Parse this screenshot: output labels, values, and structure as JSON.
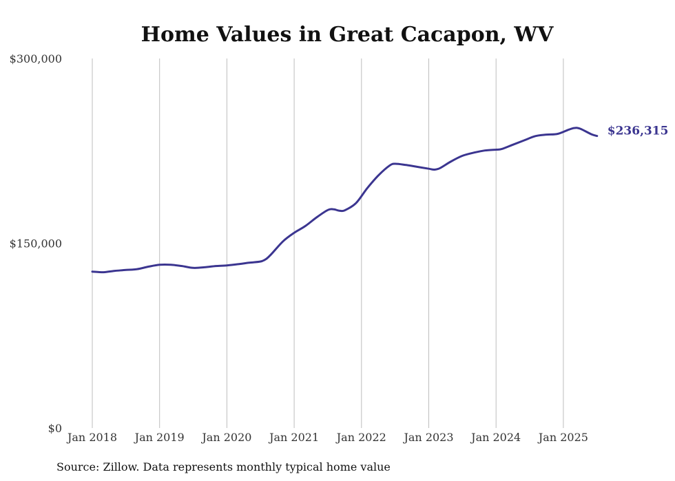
{
  "chart_data": {
    "type": "line",
    "title": "Home Values in Great Cacapon, WV",
    "source": "Source: Zillow. Data represents monthly typical home value",
    "ylim": [
      0,
      300000
    ],
    "y_ticks": [
      {
        "value": 0,
        "label": "$0"
      },
      {
        "value": 150000,
        "label": "$150,000"
      },
      {
        "value": 300000,
        "label": "$300,000"
      }
    ],
    "x_ticks": [
      {
        "value": "2018-01",
        "label": "Jan 2018"
      },
      {
        "value": "2019-01",
        "label": "Jan 2019"
      },
      {
        "value": "2020-01",
        "label": "Jan 2020"
      },
      {
        "value": "2021-01",
        "label": "Jan 2021"
      },
      {
        "value": "2022-01",
        "label": "Jan 2022"
      },
      {
        "value": "2023-01",
        "label": "Jan 2023"
      },
      {
        "value": "2024-01",
        "label": "Jan 2024"
      },
      {
        "value": "2025-01",
        "label": "Jan 2025"
      }
    ],
    "grid": {
      "vertical": true,
      "horizontal": false
    },
    "line_color": "#3b3590",
    "end_label": "$236,315",
    "series": [
      {
        "x": [
          "2018-01",
          "2018-03",
          "2018-05",
          "2018-07",
          "2018-09",
          "2018-11",
          "2019-01",
          "2019-03",
          "2019-05",
          "2019-07",
          "2019-09",
          "2019-11",
          "2020-01",
          "2020-03",
          "2020-05",
          "2020-07",
          "2020-08",
          "2020-09",
          "2020-11",
          "2021-01",
          "2021-03",
          "2021-05",
          "2021-07",
          "2021-08",
          "2021-09",
          "2021-10",
          "2021-12",
          "2022-02",
          "2022-04",
          "2022-06",
          "2022-07",
          "2022-09",
          "2022-11",
          "2023-01",
          "2023-02",
          "2023-03",
          "2023-05",
          "2023-07",
          "2023-09",
          "2023-11",
          "2024-01",
          "2024-02",
          "2024-04",
          "2024-06",
          "2024-08",
          "2024-10",
          "2024-12",
          "2025-02",
          "2025-03",
          "2025-04",
          "2025-06",
          "2025-07"
        ],
        "values": [
          127000,
          126500,
          127600,
          128300,
          129000,
          131000,
          132500,
          132500,
          131500,
          130000,
          130500,
          131500,
          132000,
          133000,
          134200,
          135200,
          137200,
          141500,
          151500,
          158500,
          164000,
          171000,
          177000,
          177600,
          176500,
          176700,
          182500,
          194500,
          205000,
          213000,
          214500,
          213500,
          212000,
          210500,
          209800,
          211000,
          216500,
          221000,
          223500,
          225300,
          226000,
          226500,
          230000,
          233500,
          237000,
          238200,
          238800,
          242300,
          243600,
          243000,
          238500,
          237100
        ]
      }
    ]
  }
}
